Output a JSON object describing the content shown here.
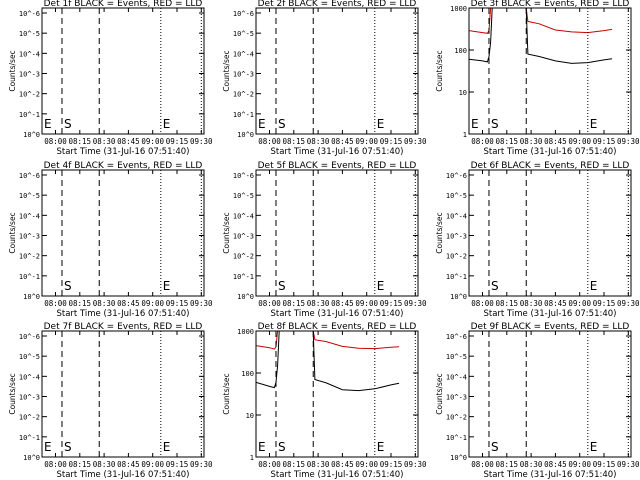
{
  "chart_data": [
    {
      "title": "Det 1f BLACK = Events, RED = LLD",
      "type": "line",
      "xlabel": "Start Time (31-Jul-16 07:51:40)",
      "ylabel": "Counts/sec",
      "x_ticks": [
        "08:00",
        "08:15",
        "08:30",
        "08:45",
        "09:00",
        "09:15",
        "09:30"
      ],
      "y_ticks": [
        "10^0",
        "10^-1",
        "10^-2",
        "10^-3",
        "10^-4",
        "10^-5",
        "10^-6"
      ],
      "ylog": true,
      "markers": [
        {
          "label": "E",
          "time": "07:51:40"
        },
        {
          "label": "S",
          "time": "08:04"
        },
        {
          "label": "E",
          "time": "09:05"
        }
      ],
      "series": []
    },
    {
      "title": "Det 2f BLACK = Events, RED = LLD",
      "type": "line",
      "xlabel": "Start Time (31-Jul-16 07:51:40)",
      "ylabel": "Counts/sec",
      "x_ticks": [
        "08:00",
        "08:15",
        "08:30",
        "08:45",
        "09:00",
        "09:15",
        "09:30"
      ],
      "y_ticks": [
        "10^0",
        "10^-1",
        "10^-2",
        "10^-3",
        "10^-4",
        "10^-5",
        "10^-6"
      ],
      "ylog": true,
      "markers": [
        {
          "label": "E",
          "time": "07:51:40"
        },
        {
          "label": "S",
          "time": "08:04"
        },
        {
          "label": "E",
          "time": "09:05"
        }
      ],
      "series": []
    },
    {
      "title": "Det 3f BLACK = Events, RED = LLD",
      "type": "line",
      "xlabel": "Start Time (31-Jul-16 07:51:40)",
      "ylabel": "Counts/sec",
      "x_ticks": [
        "08:00",
        "08:15",
        "08:30",
        "08:45",
        "09:00",
        "09:15",
        "09:30"
      ],
      "y_ticks": [
        "1000",
        "100",
        "10",
        "1"
      ],
      "ylog": true,
      "ylim": [
        1,
        1000
      ],
      "markers": [
        {
          "label": "E",
          "time": "07:51:40"
        },
        {
          "label": "S",
          "time": "08:04"
        },
        {
          "label": "E",
          "time": "09:05"
        }
      ],
      "series": [
        {
          "color": "#cc0000",
          "points": [
            [
              "07:51:40",
              290
            ],
            [
              "08:00",
              260
            ],
            [
              "08:03",
              250
            ],
            [
              "08:04",
              290
            ],
            [
              "08:05",
              1000
            ],
            [
              "08:27",
              1000
            ],
            [
              "08:28",
              480
            ],
            [
              "08:35",
              420
            ],
            [
              "08:45",
              300
            ],
            [
              "08:55",
              270
            ],
            [
              "09:05",
              260
            ],
            [
              "09:15",
              290
            ],
            [
              "09:20",
              310
            ]
          ]
        },
        {
          "color": "#000000",
          "points": [
            [
              "07:51:40",
              60
            ],
            [
              "08:00",
              55
            ],
            [
              "08:03",
              52
            ],
            [
              "08:04",
              70
            ],
            [
              "08:05",
              150
            ],
            [
              "08:06",
              1000
            ],
            [
              "08:27",
              1000
            ],
            [
              "08:28",
              80
            ],
            [
              "08:35",
              70
            ],
            [
              "08:45",
              55
            ],
            [
              "08:55",
              48
            ],
            [
              "09:05",
              50
            ],
            [
              "09:15",
              58
            ],
            [
              "09:20",
              62
            ]
          ]
        }
      ]
    },
    {
      "title": "Det 4f BLACK = Events, RED = LLD",
      "type": "line",
      "xlabel": "Start Time (31-Jul-16 07:51:40)",
      "ylabel": "Counts/sec",
      "x_ticks": [
        "08:00",
        "08:15",
        "08:30",
        "08:45",
        "09:00",
        "09:15",
        "09:30"
      ],
      "y_ticks": [
        "10^0",
        "10^-1",
        "10^-2",
        "10^-3",
        "10^-4",
        "10^-5",
        "10^-6"
      ],
      "ylog": true,
      "markers": [
        {
          "label": "S",
          "time": "08:04"
        },
        {
          "label": "E",
          "time": "09:05"
        }
      ],
      "series": []
    },
    {
      "title": "Det 5f BLACK = Events, RED = LLD",
      "type": "line",
      "xlabel": "Start Time (31-Jul-16 07:51:40)",
      "ylabel": "Counts/sec",
      "x_ticks": [
        "08:00",
        "08:15",
        "08:30",
        "08:45",
        "09:00",
        "09:15",
        "09:30"
      ],
      "y_ticks": [
        "10^0",
        "10^-1",
        "10^-2",
        "10^-3",
        "10^-4",
        "10^-5",
        "10^-6"
      ],
      "ylog": true,
      "markers": [
        {
          "label": "S",
          "time": "08:04"
        },
        {
          "label": "E",
          "time": "09:05"
        }
      ],
      "series": []
    },
    {
      "title": "Det 6f BLACK = Events, RED = LLD",
      "type": "line",
      "xlabel": "Start Time (31-Jul-16 07:51:40)",
      "ylabel": "Counts/sec",
      "x_ticks": [
        "08:00",
        "08:15",
        "08:30",
        "08:45",
        "09:00",
        "09:15",
        "09:30"
      ],
      "y_ticks": [
        "10^0",
        "10^-1",
        "10^-2",
        "10^-3",
        "10^-4",
        "10^-5",
        "10^-6"
      ],
      "ylog": true,
      "markers": [
        {
          "label": "S",
          "time": "08:04"
        },
        {
          "label": "E",
          "time": "09:05"
        }
      ],
      "series": []
    },
    {
      "title": "Det 7f BLACK = Events, RED = LLD",
      "type": "line",
      "xlabel": "Start Time (31-Jul-16 07:51:40)",
      "ylabel": "Counts/sec",
      "x_ticks": [
        "08:00",
        "08:15",
        "08:30",
        "08:45",
        "09:00",
        "09:15",
        "09:30"
      ],
      "y_ticks": [
        "10^0",
        "10^-1",
        "10^-2",
        "10^-3",
        "10^-4",
        "10^-5",
        "10^-6"
      ],
      "ylog": true,
      "markers": [
        {
          "label": "E",
          "time": "07:51:40"
        },
        {
          "label": "S",
          "time": "08:04"
        },
        {
          "label": "E",
          "time": "09:05"
        }
      ],
      "series": []
    },
    {
      "title": "Det 8f BLACK = Events, RED = LLD",
      "type": "line",
      "xlabel": "Start Time (31-Jul-16 07:51:40)",
      "ylabel": "Counts/sec",
      "x_ticks": [
        "08:00",
        "08:15",
        "08:30",
        "08:45",
        "09:00",
        "09:15",
        "09:30"
      ],
      "y_ticks": [
        "1000",
        "100",
        "10",
        "1"
      ],
      "ylog": true,
      "ylim": [
        1,
        1000
      ],
      "markers": [
        {
          "label": "E",
          "time": "07:51:40"
        },
        {
          "label": "S",
          "time": "08:04"
        },
        {
          "label": "E",
          "time": "09:05"
        }
      ],
      "series": [
        {
          "color": "#cc0000",
          "points": [
            [
              "07:51:40",
              450
            ],
            [
              "08:00",
              400
            ],
            [
              "08:03",
              370
            ],
            [
              "08:04",
              420
            ],
            [
              "08:05",
              1000
            ],
            [
              "08:27",
              1000
            ],
            [
              "08:28",
              620
            ],
            [
              "08:35",
              560
            ],
            [
              "08:45",
              430
            ],
            [
              "08:55",
              390
            ],
            [
              "09:05",
              380
            ],
            [
              "09:15",
              410
            ],
            [
              "09:20",
              420
            ]
          ]
        },
        {
          "color": "#000000",
          "points": [
            [
              "07:51:40",
              60
            ],
            [
              "08:00",
              48
            ],
            [
              "08:03",
              45
            ],
            [
              "08:04",
              60
            ],
            [
              "08:05",
              150
            ],
            [
              "08:06",
              1000
            ],
            [
              "08:27",
              1000
            ],
            [
              "08:28",
              70
            ],
            [
              "08:35",
              58
            ],
            [
              "08:45",
              40
            ],
            [
              "08:55",
              38
            ],
            [
              "09:05",
              42
            ],
            [
              "09:15",
              52
            ],
            [
              "09:20",
              57
            ]
          ]
        }
      ]
    },
    {
      "title": "Det 9f BLACK = Events, RED = LLD",
      "type": "line",
      "xlabel": "Start Time (31-Jul-16 07:51:40)",
      "ylabel": "Counts/sec",
      "x_ticks": [
        "08:00",
        "08:15",
        "08:30",
        "08:45",
        "09:00",
        "09:15",
        "09:30"
      ],
      "y_ticks": [
        "10^0",
        "10^-1",
        "10^-2",
        "10^-3",
        "10^-4",
        "10^-5",
        "10^-6"
      ],
      "ylog": true,
      "markers": [
        {
          "label": "S",
          "time": "08:04"
        },
        {
          "label": "E",
          "time": "09:05"
        }
      ],
      "series": []
    }
  ],
  "shared": {
    "xrange": [
      "07:51:40",
      "09:31:40"
    ],
    "vertical_lines": [
      {
        "time": "08:04",
        "style": "dashed"
      },
      {
        "time": "08:27",
        "style": "dashed"
      },
      {
        "time": "09:05",
        "style": "dotted"
      },
      {
        "time": "09:30",
        "style": "dotted"
      }
    ]
  }
}
